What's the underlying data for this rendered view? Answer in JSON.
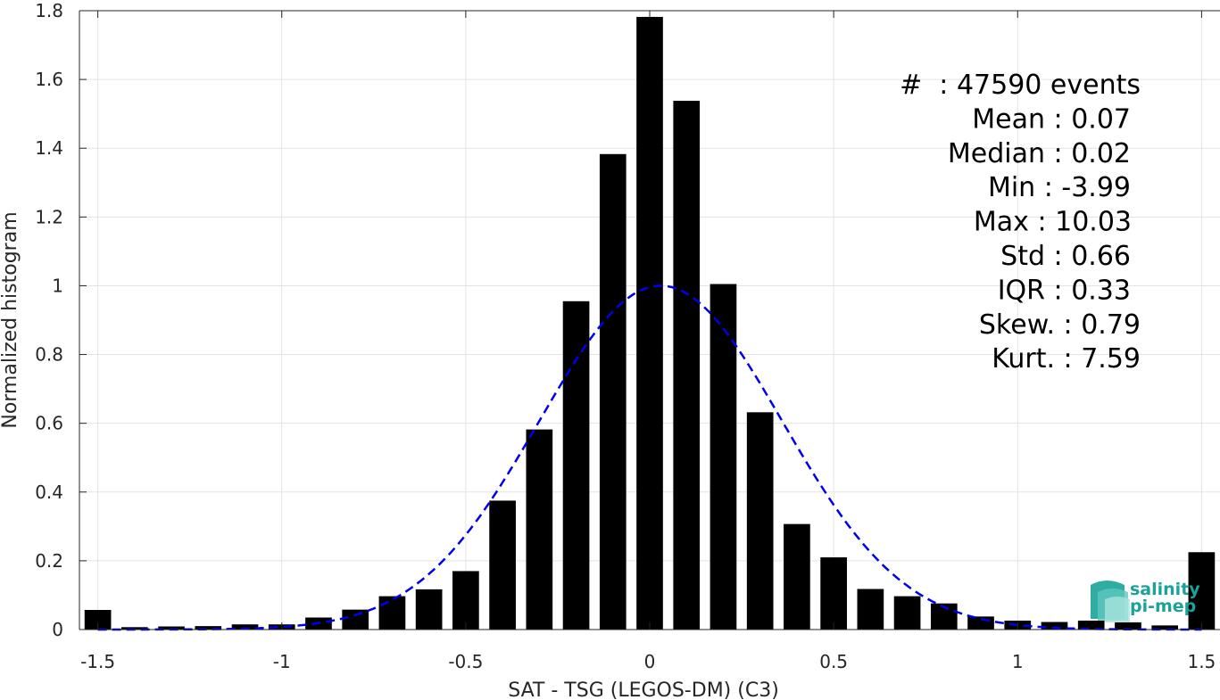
{
  "chart_data": {
    "type": "bar",
    "title": "",
    "xlabel": "SAT - TSG (LEGOS-DM) (C3)",
    "ylabel": "Normalized histogram",
    "xlim": [
      -1.55,
      1.55
    ],
    "ylim": [
      0,
      1.8
    ],
    "grid": true,
    "bar_color": "#000000",
    "fit_color": "#0000ee",
    "x_ticks": [
      -1.5,
      -1,
      -0.5,
      0,
      0.5,
      1,
      1.5
    ],
    "x_tick_labels": [
      "-1.5",
      "-1",
      "-0.5",
      "0",
      "0.5",
      "1",
      "1.5"
    ],
    "y_ticks": [
      0,
      0.2,
      0.4,
      0.6,
      0.8,
      1,
      1.2,
      1.4,
      1.6,
      1.8
    ],
    "y_tick_labels": [
      "0",
      "0.2",
      "0.4",
      "0.6",
      "0.8",
      "1",
      "1.2",
      "1.4",
      "1.6",
      "1.8"
    ],
    "bin_width": 0.1,
    "series": [
      {
        "x": [
          -1.5,
          -1.4,
          -1.3,
          -1.2,
          -1.1,
          -1.0,
          -0.9,
          -0.8,
          -0.7,
          -0.6,
          -0.5,
          -0.4,
          -0.3,
          -0.2,
          -0.1,
          0.0,
          0.1,
          0.2,
          0.3,
          0.4,
          0.5,
          0.6,
          0.7,
          0.8,
          0.9,
          1.0,
          1.1,
          1.2,
          1.3,
          1.4,
          1.5
        ],
        "values": [
          0.057,
          0.007,
          0.009,
          0.01,
          0.015,
          0.015,
          0.035,
          0.058,
          0.097,
          0.117,
          0.17,
          0.375,
          0.582,
          0.955,
          1.383,
          1.782,
          1.538,
          1.005,
          0.632,
          0.307,
          0.21,
          0.118,
          0.097,
          0.076,
          0.038,
          0.026,
          0.022,
          0.026,
          0.021,
          0.012,
          0.225
        ]
      }
    ],
    "fit": {
      "type": "gaussian",
      "peak": 1.0,
      "center": 0.03,
      "sigma": 0.33
    },
    "stats": [
      "#  : 47590 events",
      "Mean : 0.07",
      "Median : 0.02",
      "Min : -3.99",
      "Max : 10.03",
      "Std : 0.66",
      "IQR : 0.33",
      "Skew. : 0.79",
      "Kurt. : 7.59"
    ]
  },
  "logo": {
    "line1": "salinity",
    "line2": "pi-mep",
    "color": "#1aa39a"
  }
}
